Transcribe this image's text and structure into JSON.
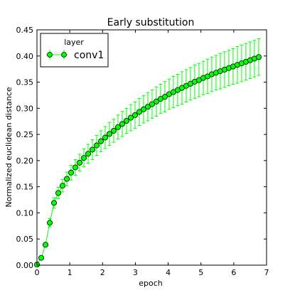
{
  "chart_data": {
    "type": "line",
    "title": "Early substitution",
    "xlabel": "epoch",
    "ylabel": "Normalized euclidean distance",
    "xlim": [
      0,
      7
    ],
    "ylim": [
      0.0,
      0.45
    ],
    "xticks": [
      0,
      1,
      2,
      3,
      4,
      5,
      6,
      7
    ],
    "xtick_labels": [
      "0",
      "1",
      "2",
      "3",
      "4",
      "5",
      "6",
      "7"
    ],
    "yticks": [
      0.0,
      0.05,
      0.1,
      0.15,
      0.2,
      0.25,
      0.3,
      0.35,
      0.4,
      0.45
    ],
    "ytick_labels": [
      "0.00",
      "0.05",
      "0.10",
      "0.15",
      "0.20",
      "0.25",
      "0.30",
      "0.35",
      "0.40",
      "0.45"
    ],
    "grid": false,
    "legend": {
      "title": "layer",
      "placement": "top-left"
    },
    "series": [
      {
        "name": "conv1",
        "color": "#00ff00",
        "marker_edge_color": "#000000",
        "error_bar_color": "#00ff00",
        "x": [
          0.0,
          0.13,
          0.26,
          0.39,
          0.52,
          0.65,
          0.78,
          0.91,
          1.04,
          1.17,
          1.3,
          1.43,
          1.56,
          1.69,
          1.82,
          1.95,
          2.08,
          2.21,
          2.34,
          2.47,
          2.6,
          2.73,
          2.86,
          2.99,
          3.12,
          3.25,
          3.38,
          3.51,
          3.64,
          3.77,
          3.9,
          4.03,
          4.16,
          4.29,
          4.42,
          4.55,
          4.68,
          4.81,
          4.94,
          5.07,
          5.2,
          5.33,
          5.46,
          5.59,
          5.72,
          5.85,
          5.98,
          6.11,
          6.24,
          6.37,
          6.5,
          6.63,
          6.76
        ],
        "y": [
          0.001,
          0.014,
          0.039,
          0.081,
          0.119,
          0.138,
          0.152,
          0.165,
          0.177,
          0.187,
          0.196,
          0.205,
          0.213,
          0.221,
          0.229,
          0.237,
          0.244,
          0.251,
          0.257,
          0.264,
          0.27,
          0.276,
          0.282,
          0.287,
          0.293,
          0.298,
          0.303,
          0.308,
          0.313,
          0.318,
          0.322,
          0.327,
          0.331,
          0.335,
          0.339,
          0.343,
          0.347,
          0.351,
          0.354,
          0.358,
          0.361,
          0.365,
          0.368,
          0.371,
          0.374,
          0.377,
          0.38,
          0.383,
          0.386,
          0.389,
          0.392,
          0.395,
          0.398
        ],
        "yerr": [
          0.001,
          0.002,
          0.004,
          0.008,
          0.01,
          0.011,
          0.012,
          0.013,
          0.014,
          0.015,
          0.016,
          0.017,
          0.018,
          0.019,
          0.019,
          0.02,
          0.021,
          0.022,
          0.022,
          0.023,
          0.024,
          0.024,
          0.025,
          0.025,
          0.026,
          0.026,
          0.027,
          0.027,
          0.028,
          0.028,
          0.029,
          0.029,
          0.03,
          0.03,
          0.031,
          0.031,
          0.031,
          0.032,
          0.032,
          0.032,
          0.033,
          0.033,
          0.033,
          0.034,
          0.034,
          0.034,
          0.034,
          0.035,
          0.035,
          0.035,
          0.035,
          0.035,
          0.035
        ]
      }
    ]
  }
}
